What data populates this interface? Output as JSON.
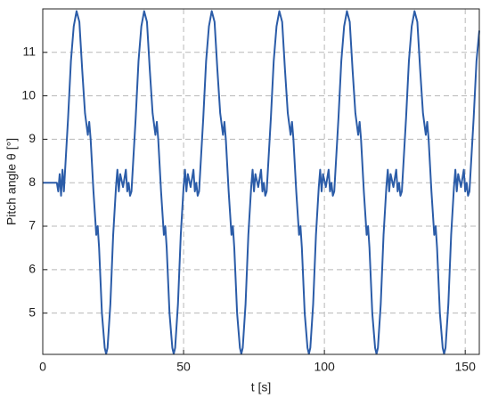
{
  "chart_data": {
    "type": "line",
    "xlabel": "t [s]",
    "ylabel": "Pitch angle θ [°]",
    "xlim": [
      0,
      155
    ],
    "ylim": [
      4.05,
      12
    ],
    "xticks": [
      0,
      50,
      100,
      150
    ],
    "yticks": [
      5,
      6,
      7,
      8,
      9,
      10,
      11
    ],
    "grid": true,
    "x": [
      0,
      5,
      5.5,
      6,
      6.5,
      7,
      7.5,
      9,
      10,
      11,
      12,
      13,
      14,
      15,
      16,
      16.5,
      17,
      18,
      19,
      19.5,
      20,
      21,
      22,
      22.5,
      23,
      24,
      25,
      26,
      26.5,
      27,
      27.5,
      28.5,
      29.5,
      30,
      30.5,
      31,
      31.5,
      33,
      34,
      35,
      36,
      37,
      38,
      39,
      40,
      40.5,
      41,
      42,
      43,
      43.5,
      44,
      45,
      46,
      46.5,
      47,
      48,
      49,
      50,
      50.5,
      51,
      51.5,
      52.5,
      53.5,
      54,
      54.5,
      55,
      55.5,
      57,
      58,
      59,
      60,
      61,
      62,
      63,
      64,
      64.5,
      65,
      66,
      67,
      67.5,
      68,
      69,
      70,
      70.5,
      71,
      72,
      73,
      74,
      74.5,
      75,
      75.5,
      76.5,
      77.5,
      78,
      78.5,
      79,
      79.5,
      81,
      82,
      83,
      84,
      85,
      86,
      87,
      88,
      88.5,
      89,
      90,
      91,
      91.5,
      92,
      93,
      94,
      94.5,
      95,
      96,
      97,
      98,
      98.5,
      99,
      99.5,
      100.5,
      101.5,
      102,
      102.5,
      103,
      103.5,
      105,
      106,
      107,
      108,
      109,
      110,
      111,
      112,
      112.5,
      113,
      114,
      115,
      115.5,
      116,
      117,
      118,
      118.5,
      119,
      120,
      121,
      122,
      122.5,
      123,
      123.5,
      124.5,
      125.5,
      126,
      126.5,
      127,
      127.5,
      129,
      130,
      131,
      132,
      133,
      134,
      135,
      136,
      136.5,
      137,
      138,
      139,
      139.5,
      140,
      141,
      142,
      142.5,
      143,
      144,
      145,
      146,
      146.5,
      147,
      147.5,
      148.5,
      149.5,
      150,
      150.5,
      151,
      151.5,
      153,
      154,
      155
    ],
    "series": [
      {
        "color": "#2b5ca8",
        "values": [
          8,
          8,
          7.8,
          8.2,
          7.7,
          8.3,
          7.8,
          9.5,
          10.8,
          11.6,
          11.95,
          11.7,
          10.6,
          9.6,
          9.1,
          9.4,
          9.0,
          7.8,
          6.8,
          7.0,
          6.5,
          5.0,
          4.2,
          4.06,
          4.2,
          5.2,
          6.8,
          7.9,
          8.3,
          7.8,
          8.2,
          7.9,
          8.3,
          7.8,
          8.0,
          7.7,
          7.8,
          9.5,
          10.8,
          11.6,
          11.95,
          11.7,
          10.6,
          9.6,
          9.1,
          9.4,
          9.0,
          7.8,
          6.8,
          7.0,
          6.5,
          5.0,
          4.2,
          4.06,
          4.2,
          5.2,
          6.8,
          7.9,
          8.3,
          7.8,
          8.2,
          7.9,
          8.3,
          7.8,
          8.0,
          7.7,
          7.8,
          9.5,
          10.8,
          11.6,
          11.95,
          11.7,
          10.6,
          9.6,
          9.1,
          9.4,
          9.0,
          7.8,
          6.8,
          7.0,
          6.5,
          5.0,
          4.2,
          4.06,
          4.2,
          5.2,
          6.8,
          7.9,
          8.3,
          7.8,
          8.2,
          7.9,
          8.3,
          7.8,
          8.0,
          7.7,
          7.8,
          9.5,
          10.8,
          11.6,
          11.95,
          11.7,
          10.6,
          9.6,
          9.1,
          9.4,
          9.0,
          7.8,
          6.8,
          7.0,
          6.5,
          5.0,
          4.2,
          4.06,
          4.2,
          5.2,
          6.8,
          7.9,
          8.3,
          7.8,
          8.2,
          7.9,
          8.3,
          7.8,
          8.0,
          7.7,
          7.8,
          9.5,
          10.8,
          11.6,
          11.95,
          11.7,
          10.6,
          9.6,
          9.1,
          9.4,
          9.0,
          7.8,
          6.8,
          7.0,
          6.5,
          5.0,
          4.2,
          4.06,
          4.2,
          5.2,
          6.8,
          7.9,
          8.3,
          7.8,
          8.2,
          7.9,
          8.3,
          7.8,
          8.0,
          7.7,
          7.8,
          9.5,
          10.8,
          11.6,
          11.95,
          11.7,
          10.6,
          9.6,
          9.1,
          9.4,
          9.0,
          7.8,
          6.8,
          7.0,
          6.5,
          5.0,
          4.2,
          4.06,
          4.2,
          5.2,
          6.8,
          7.9,
          8.3,
          7.8,
          8.2,
          7.9,
          8.3,
          7.8,
          8.0,
          7.7,
          7.8,
          9.5,
          10.8,
          11.5
        ]
      }
    ]
  }
}
